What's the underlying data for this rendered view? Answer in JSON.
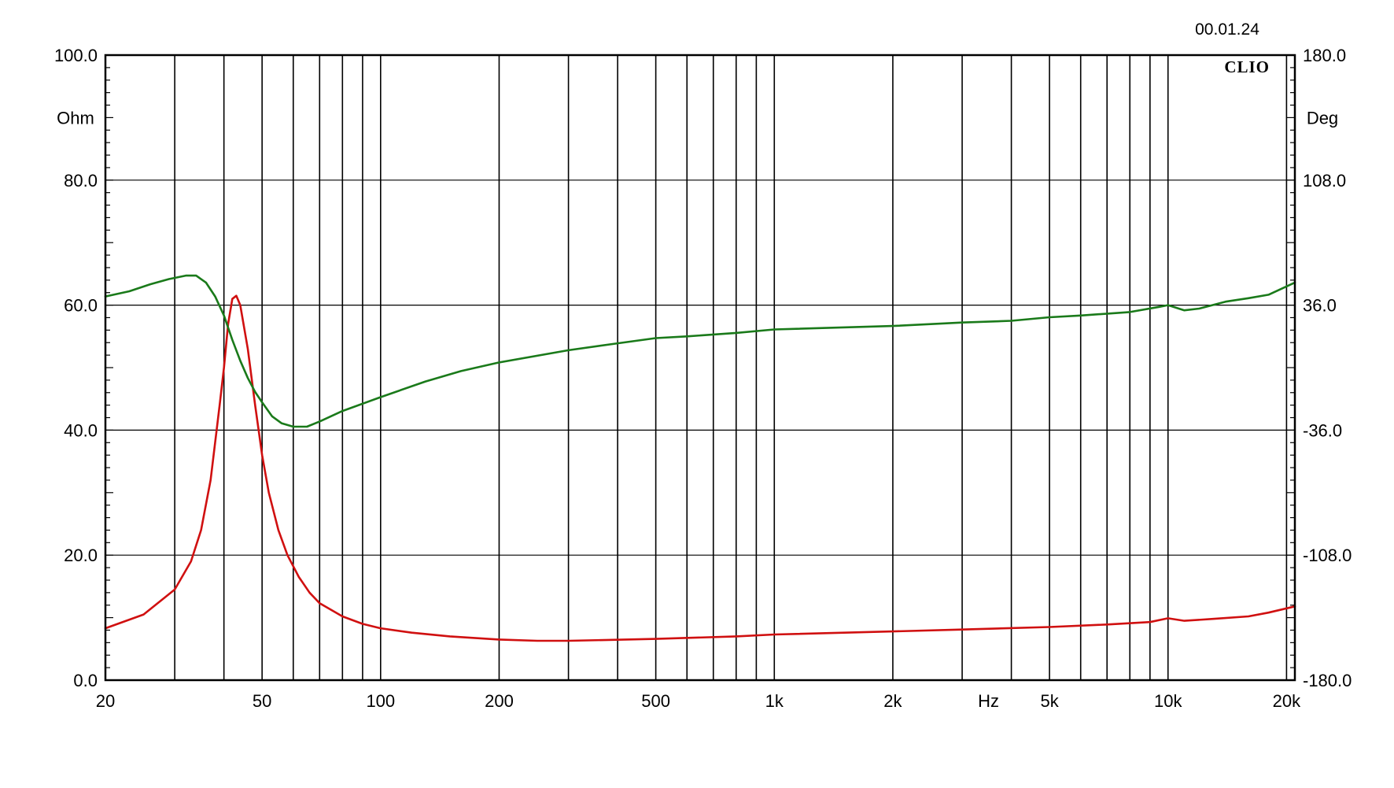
{
  "date_stamp": "00.01.24",
  "brand": "CLIO",
  "colors": {
    "impedance": "#d01010",
    "phase": "#1a7a1a",
    "grid": "#000000",
    "background": "#ffffff"
  },
  "chart_data": {
    "type": "line",
    "x_scale": "log",
    "x_range": [
      20,
      21000
    ],
    "x_unit": "Hz",
    "x_ticks": [
      {
        "value": 20,
        "label": "20"
      },
      {
        "value": 50,
        "label": "50"
      },
      {
        "value": 100,
        "label": "100"
      },
      {
        "value": 200,
        "label": "200"
      },
      {
        "value": 500,
        "label": "500"
      },
      {
        "value": 1000,
        "label": "1k"
      },
      {
        "value": 2000,
        "label": "2k"
      },
      {
        "value": 5000,
        "label": "5k"
      },
      {
        "value": 10000,
        "label": "10k"
      },
      {
        "value": 20000,
        "label": "20k"
      }
    ],
    "x_gridlines": [
      20,
      30,
      40,
      50,
      60,
      70,
      80,
      90,
      100,
      200,
      300,
      400,
      500,
      600,
      700,
      800,
      900,
      1000,
      2000,
      3000,
      4000,
      5000,
      6000,
      7000,
      8000,
      9000,
      10000,
      20000,
      21000
    ],
    "y_left": {
      "unit": "Ohm",
      "range": [
        0,
        100
      ],
      "ticks": [
        "0.0",
        "20.0",
        "40.0",
        "60.0",
        "80.0",
        "100.0"
      ]
    },
    "y_right": {
      "unit": "Deg",
      "range": [
        -180,
        180
      ],
      "ticks": [
        "-180.0",
        "-108.0",
        "-36.0",
        "36.0",
        "108.0",
        "180.0"
      ]
    },
    "grid": true,
    "series": [
      {
        "key": "impedance",
        "axis": "left",
        "color": "#d01010",
        "points": [
          [
            20,
            8.3
          ],
          [
            25,
            10.5
          ],
          [
            30,
            14.5
          ],
          [
            33,
            19
          ],
          [
            35,
            24
          ],
          [
            37,
            32
          ],
          [
            39,
            44
          ],
          [
            40,
            50
          ],
          [
            41,
            57
          ],
          [
            42,
            61
          ],
          [
            43,
            61.5
          ],
          [
            44,
            60
          ],
          [
            46,
            53
          ],
          [
            48,
            44
          ],
          [
            50,
            36
          ],
          [
            52,
            30
          ],
          [
            55,
            24
          ],
          [
            58,
            20
          ],
          [
            62,
            16.5
          ],
          [
            66,
            14
          ],
          [
            70,
            12.3
          ],
          [
            80,
            10.2
          ],
          [
            90,
            9.0
          ],
          [
            100,
            8.3
          ],
          [
            120,
            7.6
          ],
          [
            150,
            7.0
          ],
          [
            200,
            6.5
          ],
          [
            250,
            6.3
          ],
          [
            300,
            6.3
          ],
          [
            500,
            6.6
          ],
          [
            800,
            7.0
          ],
          [
            1000,
            7.3
          ],
          [
            2000,
            7.8
          ],
          [
            3000,
            8.1
          ],
          [
            5000,
            8.5
          ],
          [
            7000,
            8.9
          ],
          [
            9000,
            9.3
          ],
          [
            10000,
            9.9
          ],
          [
            11000,
            9.5
          ],
          [
            13000,
            9.8
          ],
          [
            16000,
            10.2
          ],
          [
            18000,
            10.8
          ],
          [
            21000,
            11.8
          ]
        ]
      },
      {
        "key": "phase",
        "axis": "right",
        "color": "#1a7a1a",
        "points": [
          [
            20,
            41
          ],
          [
            23,
            44
          ],
          [
            26,
            48
          ],
          [
            29,
            51
          ],
          [
            32,
            53
          ],
          [
            34,
            53
          ],
          [
            36,
            49
          ],
          [
            38,
            41
          ],
          [
            40,
            30
          ],
          [
            42,
            16
          ],
          [
            44,
            4
          ],
          [
            46,
            -6
          ],
          [
            48,
            -14
          ],
          [
            50,
            -20
          ],
          [
            53,
            -28
          ],
          [
            56,
            -32
          ],
          [
            60,
            -34
          ],
          [
            65,
            -34
          ],
          [
            70,
            -31
          ],
          [
            80,
            -25
          ],
          [
            100,
            -17
          ],
          [
            130,
            -8
          ],
          [
            160,
            -2
          ],
          [
            200,
            3
          ],
          [
            300,
            10
          ],
          [
            400,
            14
          ],
          [
            500,
            17
          ],
          [
            600,
            18
          ],
          [
            800,
            20
          ],
          [
            1000,
            22
          ],
          [
            2000,
            24
          ],
          [
            3000,
            26
          ],
          [
            4000,
            27
          ],
          [
            5000,
            29
          ],
          [
            6000,
            30
          ],
          [
            8000,
            32
          ],
          [
            9500,
            35
          ],
          [
            10000,
            36
          ],
          [
            11000,
            33
          ],
          [
            12000,
            34
          ],
          [
            14000,
            38
          ],
          [
            16000,
            40
          ],
          [
            18000,
            42
          ],
          [
            21000,
            49
          ]
        ]
      }
    ]
  }
}
